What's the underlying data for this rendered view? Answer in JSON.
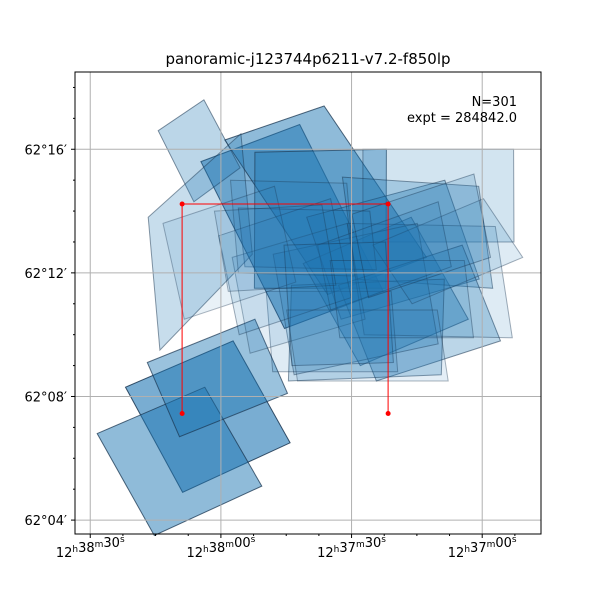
{
  "chart_data": {
    "type": "scatter",
    "title": "panoramic-j123744p6211-v7.2-f850lp",
    "annotation": {
      "n_label": "N=301",
      "expt_label": "expt = 284842.0"
    },
    "x_axis": {
      "unit": "arcsec of RA",
      "ticks": [
        {
          "value": 0,
          "label": "12ʰ38ᵐ30ˢ"
        },
        {
          "value": 30,
          "label": "12ʰ38ᵐ00ˢ"
        },
        {
          "value": 60,
          "label": "12ʰ37ᵐ30ˢ"
        },
        {
          "value": 90,
          "label": "12ʰ37ᵐ00ˢ"
        }
      ],
      "range": [
        -3.5,
        103.5
      ],
      "direction": "RA decreases to the right"
    },
    "y_axis": {
      "unit": "arcmin of Dec",
      "ticks": [
        {
          "value": 4,
          "label": "62°04′"
        },
        {
          "value": 8,
          "label": "62°08′"
        },
        {
          "value": 12,
          "label": "62°12′"
        },
        {
          "value": 16,
          "label": "62°16′"
        }
      ],
      "range": [
        3.55,
        18.5
      ]
    },
    "grid": true,
    "colors": {
      "footprint_fill": "#1f77b4",
      "footprint_edge": "#1a3550",
      "marker": "#ff0000",
      "grid": "#b0b0b0"
    },
    "red_markers": [
      {
        "x": 21.1,
        "y": 14.23
      },
      {
        "x": 68.4,
        "y": 14.23
      },
      {
        "x": 21.1,
        "y": 7.45
      },
      {
        "x": 68.4,
        "y": 7.45
      }
    ],
    "red_lines": [
      {
        "points": [
          [
            21.1,
            7.45
          ],
          [
            21.1,
            14.23
          ],
          [
            68.4,
            14.23
          ],
          [
            68.4,
            7.45
          ]
        ]
      }
    ],
    "footprints": [
      {
        "opacity": 0.6,
        "corners": [
          [
            8.1,
            8.3
          ],
          [
            32.8,
            9.8
          ],
          [
            45.9,
            6.5
          ],
          [
            21.2,
            4.9
          ]
        ]
      },
      {
        "opacity": 0.5,
        "corners": [
          [
            1.6,
            6.8
          ],
          [
            26.3,
            8.3
          ],
          [
            39.4,
            5.1
          ],
          [
            14.7,
            3.5
          ]
        ]
      },
      {
        "opacity": 0.45,
        "corners": [
          [
            13.1,
            9.1
          ],
          [
            37.8,
            10.5
          ],
          [
            45.3,
            8.1
          ],
          [
            20.5,
            6.7
          ]
        ]
      },
      {
        "opacity": 0.55,
        "corners": [
          [
            25.4,
            15.6
          ],
          [
            48.1,
            16.8
          ],
          [
            67.3,
            11.4
          ],
          [
            44.6,
            10.2
          ]
        ]
      },
      {
        "opacity": 0.5,
        "corners": [
          [
            30.9,
            16.3
          ],
          [
            53.7,
            17.4
          ],
          [
            77.2,
            12.5
          ],
          [
            54.5,
            11.3
          ]
        ]
      },
      {
        "opacity": 0.4,
        "corners": [
          [
            37.8,
            15.9
          ],
          [
            68.0,
            16.0
          ],
          [
            67.9,
            11.5
          ],
          [
            37.7,
            11.5
          ]
        ]
      },
      {
        "opacity": 0.3,
        "corners": [
          [
            15.6,
            16.6
          ],
          [
            26.1,
            17.6
          ],
          [
            34.4,
            15.4
          ],
          [
            23.8,
            14.3
          ]
        ]
      },
      {
        "opacity": 0.25,
        "corners": [
          [
            13.3,
            13.8
          ],
          [
            34.6,
            16.5
          ],
          [
            37.2,
            12.6
          ],
          [
            16.0,
            9.5
          ]
        ]
      },
      {
        "opacity": 0.2,
        "corners": [
          [
            62.6,
            16.0
          ],
          [
            97.2,
            16.0
          ],
          [
            97.3,
            13.0
          ],
          [
            62.6,
            13.0
          ]
        ]
      },
      {
        "opacity": 0.35,
        "corners": [
          [
            48.9,
            12.3
          ],
          [
            73.7,
            13.8
          ],
          [
            86.8,
            10.5
          ],
          [
            62.0,
            9.0
          ]
        ]
      },
      {
        "opacity": 0.3,
        "corners": [
          [
            49.7,
            13.8
          ],
          [
            81.4,
            15.0
          ],
          [
            89.3,
            11.8
          ],
          [
            57.6,
            10.5
          ]
        ]
      },
      {
        "opacity": 0.25,
        "corners": [
          [
            57.9,
            15.1
          ],
          [
            89.2,
            14.8
          ],
          [
            92.4,
            11.5
          ],
          [
            61.1,
            11.8
          ]
        ]
      },
      {
        "opacity": 0.3,
        "corners": [
          [
            57.0,
            11.6
          ],
          [
            85.4,
            12.9
          ],
          [
            94.2,
            9.8
          ],
          [
            65.7,
            8.5
          ]
        ]
      },
      {
        "opacity": 0.25,
        "corners": [
          [
            46.2,
            11.6
          ],
          [
            81.3,
            11.8
          ],
          [
            80.6,
            8.7
          ],
          [
            45.5,
            8.5
          ]
        ]
      },
      {
        "opacity": 0.2,
        "corners": [
          [
            42.0,
            12.6
          ],
          [
            75.1,
            13.6
          ],
          [
            79.9,
            9.7
          ],
          [
            46.8,
            8.7
          ]
        ]
      },
      {
        "opacity": 0.15,
        "corners": [
          [
            59.0,
            13.6
          ],
          [
            93.0,
            13.5
          ],
          [
            96.9,
            9.9
          ],
          [
            62.9,
            10.0
          ]
        ]
      },
      {
        "opacity": 0.2,
        "corners": [
          [
            34.0,
            14.1
          ],
          [
            64.2,
            14.0
          ],
          [
            65.7,
            12.1
          ],
          [
            35.5,
            12.2
          ]
        ]
      },
      {
        "opacity": 0.15,
        "corners": [
          [
            40.4,
            11.4
          ],
          [
            69.1,
            11.4
          ],
          [
            70.6,
            8.8
          ],
          [
            41.9,
            8.8
          ]
        ]
      },
      {
        "opacity": 0.12,
        "corners": [
          [
            32.6,
            12.5
          ],
          [
            59.0,
            13.6
          ],
          [
            63.1,
            10.5
          ],
          [
            36.7,
            9.4
          ]
        ]
      },
      {
        "opacity": 0.15,
        "corners": [
          [
            64.9,
            12.9
          ],
          [
            90.3,
            14.4
          ],
          [
            99.3,
            12.5
          ],
          [
            73.9,
            11.0
          ]
        ]
      },
      {
        "opacity": 0.18,
        "corners": [
          [
            52.2,
            12.9
          ],
          [
            79.9,
            14.3
          ],
          [
            82.9,
            12.2
          ],
          [
            55.2,
            10.8
          ]
        ]
      },
      {
        "opacity": 0.15,
        "corners": [
          [
            29.5,
            13.2
          ],
          [
            55.2,
            14.4
          ],
          [
            59.9,
            11.2
          ],
          [
            34.2,
            10.0
          ]
        ]
      },
      {
        "opacity": 0.12,
        "corners": [
          [
            32.2,
            15.0
          ],
          [
            58.9,
            14.9
          ],
          [
            60.7,
            11.9
          ],
          [
            34.0,
            12.0
          ]
        ]
      },
      {
        "opacity": 0.1,
        "corners": [
          [
            16.7,
            13.6
          ],
          [
            42.3,
            14.8
          ],
          [
            47.2,
            11.7
          ],
          [
            21.6,
            10.5
          ]
        ]
      },
      {
        "opacity": 0.2,
        "corners": [
          [
            44.5,
            12.9
          ],
          [
            67.8,
            13.0
          ],
          [
            69.6,
            9.1
          ],
          [
            46.3,
            9.0
          ]
        ]
      },
      {
        "opacity": 0.15,
        "corners": [
          [
            55.1,
            12.4
          ],
          [
            85.9,
            12.4
          ],
          [
            88.0,
            9.9
          ],
          [
            57.3,
            9.9
          ]
        ]
      },
      {
        "opacity": 0.12,
        "corners": [
          [
            45.1,
            10.8
          ],
          [
            79.7,
            10.8
          ],
          [
            82.2,
            8.5
          ],
          [
            47.6,
            8.5
          ]
        ]
      },
      {
        "opacity": 0.18,
        "corners": [
          [
            60.1,
            13.9
          ],
          [
            88.1,
            15.2
          ],
          [
            91.9,
            12.5
          ],
          [
            63.9,
            11.2
          ]
        ]
      },
      {
        "opacity": 0.12,
        "corners": [
          [
            28.5,
            14.0
          ],
          [
            53.2,
            14.2
          ],
          [
            56.4,
            11.6
          ],
          [
            31.7,
            11.4
          ]
        ]
      }
    ]
  }
}
